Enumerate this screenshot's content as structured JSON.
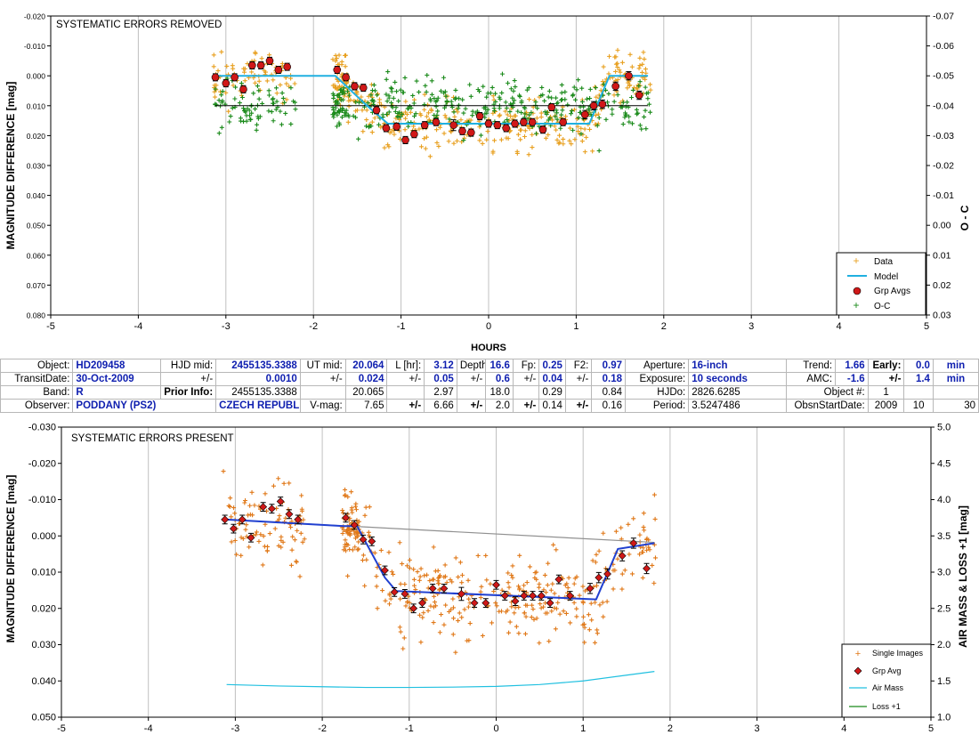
{
  "chart_data": [
    {
      "type": "scatter",
      "title": "SYSTEMATIC ERRORS REMOVED",
      "xlabel": "HOURS",
      "ylabel": "MAGNITUDE DIFFERENCE [mag]",
      "y2label": "O - C",
      "xlim": [
        -5,
        5
      ],
      "ylim": [
        -0.02,
        0.08
      ],
      "y_reversed": true,
      "y2lim": [
        -0.07,
        0.03
      ],
      "xticks": [
        "-5",
        "-4",
        "-3",
        "-2",
        "-1",
        "0",
        "1",
        "2",
        "3",
        "4",
        "5"
      ],
      "yticks": [
        "-0.020",
        "-0.010",
        "0.000",
        "0.010",
        "0.020",
        "0.030",
        "0.040",
        "0.050",
        "0.060",
        "0.070",
        "0.080"
      ],
      "y2ticks": [
        "-0.07",
        "-0.06",
        "-0.05",
        "-0.04",
        "-0.03",
        "-0.02",
        "-0.01",
        "0.00",
        "0.01",
        "0.02",
        "0.03"
      ],
      "grid": true,
      "legend_position": "bottom-right",
      "legend": [
        "Data",
        "Model",
        "Grp Avgs",
        "O-C"
      ],
      "colors": {
        "data": "#e8a020",
        "model": "#20b0e0",
        "grp": "#d01818",
        "oc": "#1a8a1a"
      },
      "model": {
        "x": [
          -3.1,
          -2.75,
          -1.75,
          -1.4,
          -1.15,
          1.15,
          1.38,
          1.82
        ],
        "y": [
          0.0,
          0.0,
          0.0,
          0.0097,
          0.016,
          0.016,
          0.0,
          0.0
        ]
      },
      "grp_avgs": {
        "x": [
          -3.12,
          -3.0,
          -2.9,
          -2.8,
          -2.7,
          -2.6,
          -2.5,
          -2.4,
          -2.3,
          -1.73,
          -1.63,
          -1.53,
          -1.43,
          -1.28,
          -1.17,
          -1.05,
          -0.95,
          -0.85,
          -0.73,
          -0.6,
          -0.4,
          -0.3,
          -0.2,
          -0.1,
          0.0,
          0.1,
          0.2,
          0.3,
          0.4,
          0.5,
          0.62,
          0.72,
          0.85,
          1.1,
          1.2,
          1.3,
          1.45,
          1.6,
          1.72
        ],
        "y": [
          0.0005,
          0.0025,
          0.0005,
          0.0045,
          -0.0035,
          -0.0035,
          -0.005,
          -0.002,
          -0.003,
          -0.002,
          0.0005,
          0.0035,
          0.004,
          0.0115,
          0.0175,
          0.017,
          0.0215,
          0.0195,
          0.0165,
          0.0155,
          0.0165,
          0.0185,
          0.019,
          0.0135,
          0.016,
          0.0165,
          0.0175,
          0.016,
          0.0155,
          0.0155,
          0.018,
          0.0105,
          0.0155,
          0.013,
          0.01,
          0.0095,
          0.0035,
          0.0,
          0.0065
        ],
        "err": [
          0.0012,
          0.0012,
          0.0012,
          0.0012,
          0.0012,
          0.0012,
          0.0012,
          0.0012,
          0.0012,
          0.0012,
          0.0012,
          0.0012,
          0.0012,
          0.0012,
          0.0012,
          0.0012,
          0.0012,
          0.0012,
          0.0012,
          0.0012,
          0.0018,
          0.0012,
          0.0012,
          0.0012,
          0.0012,
          0.0012,
          0.0012,
          0.0012,
          0.0012,
          0.0012,
          0.0012,
          0.0012,
          0.0012,
          0.0014,
          0.0014,
          0.0014,
          0.0014,
          0.0014,
          0.0014
        ]
      },
      "data_note": "approx. 500 individual scatter points spread around the model (±0.008 mag) from -3.15 to 1.85 h, gap between -2.2 and -1.75 h"
    },
    {
      "type": "scatter",
      "title": "SYSTEMATIC ERRORS PRESENT",
      "xlabel": "",
      "ylabel": "MAGNITUDE DIFFERENCE [mag]",
      "y2label": "AIR MASS & LOSS +1 [mag]",
      "xlim": [
        -5,
        5
      ],
      "ylim": [
        -0.03,
        0.05
      ],
      "y_reversed": true,
      "y2lim": [
        1.0,
        5.0
      ],
      "xticks": [
        "-5",
        "-4",
        "-3",
        "-2",
        "-1",
        "0",
        "1",
        "2",
        "3",
        "4",
        "5"
      ],
      "yticks": [
        "-0.030",
        "-0.020",
        "-0.010",
        "0.000",
        "0.010",
        "0.020",
        "0.030",
        "0.040",
        "0.050"
      ],
      "y2ticks": [
        "1.0",
        "1.5",
        "2.0",
        "2.5",
        "3.0",
        "3.5",
        "4.0",
        "4.5",
        "5.0"
      ],
      "grid": true,
      "legend_position": "bottom-right",
      "legend": [
        "Single Images",
        "Grp Avg",
        "Air Mass",
        "Loss +1"
      ],
      "colors": {
        "data": "#e07818",
        "model": "#2040d0",
        "grp": "#d01818",
        "airmass": "#20c0e0",
        "loss": "#1a8a1a",
        "trend": "#909090"
      },
      "model": {
        "x": [
          -3.1,
          -1.75,
          -1.6,
          -1.28,
          -1.15,
          1.15,
          1.4,
          1.82
        ],
        "y": [
          -0.0045,
          -0.0027,
          -0.0027,
          0.0115,
          0.0152,
          0.0175,
          0.0036,
          0.002
        ]
      },
      "trend": {
        "x": [
          -3.1,
          1.82
        ],
        "y": [
          -0.0045,
          0.0018
        ]
      },
      "airmass": {
        "x": [
          -3.1,
          -2.5,
          -2.0,
          -1.5,
          -1.0,
          -0.5,
          0.0,
          0.5,
          1.0,
          1.5,
          1.82
        ],
        "y": [
          1.45,
          1.43,
          1.42,
          1.41,
          1.41,
          1.415,
          1.425,
          1.45,
          1.5,
          1.58,
          1.63
        ]
      },
      "grp_avgs": {
        "x": [
          -3.12,
          -3.02,
          -2.92,
          -2.82,
          -2.68,
          -2.58,
          -2.48,
          -2.38,
          -2.28,
          -1.73,
          -1.63,
          -1.53,
          -1.43,
          -1.28,
          -1.17,
          -1.05,
          -0.95,
          -0.85,
          -0.73,
          -0.6,
          -0.4,
          -0.25,
          -0.12,
          0.0,
          0.1,
          0.22,
          0.32,
          0.42,
          0.52,
          0.62,
          0.72,
          0.85,
          1.08,
          1.18,
          1.28,
          1.45,
          1.58,
          1.73
        ],
        "y": [
          -0.0045,
          -0.002,
          -0.0045,
          0.0005,
          -0.008,
          -0.0075,
          -0.0095,
          -0.006,
          -0.0045,
          -0.005,
          -0.003,
          0.001,
          0.0015,
          0.0095,
          0.0155,
          0.016,
          0.02,
          0.0185,
          0.0145,
          0.0145,
          0.016,
          0.0185,
          0.0185,
          0.0135,
          0.0165,
          0.018,
          0.0165,
          0.0165,
          0.0165,
          0.0185,
          0.012,
          0.0165,
          0.0145,
          0.0115,
          0.0105,
          0.0055,
          0.002,
          0.009
        ],
        "err": [
          0.0012,
          0.0012,
          0.0012,
          0.0012,
          0.0012,
          0.0012,
          0.0012,
          0.0012,
          0.0012,
          0.0012,
          0.0012,
          0.0012,
          0.0012,
          0.0012,
          0.0012,
          0.0012,
          0.0012,
          0.0012,
          0.0012,
          0.0012,
          0.0018,
          0.0012,
          0.0012,
          0.0012,
          0.0012,
          0.0012,
          0.0012,
          0.0012,
          0.0012,
          0.0012,
          0.0012,
          0.0012,
          0.0014,
          0.0014,
          0.0014,
          0.0014,
          0.0014,
          0.0014
        ]
      }
    }
  ],
  "info": {
    "row1": {
      "object_label": "Object:",
      "object": "HD209458",
      "hjd_mid_label": "HJD mid:",
      "hjd_mid": "2455135.3388",
      "ut_mid_label": "UT mid:",
      "ut_mid": "20.064",
      "l_hr_label": "L [hr]:",
      "l_hr": "3.12",
      "depth_label": "Depth:",
      "depth": "16.6",
      "fp_label": "Fp:",
      "fp": "0.25",
      "f2_label": "F2:",
      "f2": "0.97",
      "aperture_label": "Aperture:",
      "aperture": "16-inch",
      "trend_label": "Trend:",
      "trend": "1.66",
      "early_label": "Early:",
      "early": "0.0",
      "early_unit": "min"
    },
    "row2": {
      "transit_date_label": "TransitDate:",
      "transit_date": "30-Oct-2009",
      "pm1": "+/-",
      "hjd_err": "0.0010",
      "pm2": "+/-",
      "ut_err": "0.024",
      "pm3": "+/-",
      "l_err": "0.05",
      "pm4": "+/-",
      "depth_err": "0.6",
      "pm5": "+/-",
      "fp_err": "0.04",
      "pm6": "+/-",
      "f2_err": "0.18",
      "exposure_label": "Exposure:",
      "exposure": "10 seconds",
      "amc_label": "AMC:",
      "amc": "-1.6",
      "pm7": "+/-",
      "early_err": "1.4",
      "early_err_unit": "min"
    },
    "row3": {
      "band_label": "Band:",
      "band": "R",
      "prior_label": "Prior Info:",
      "prior_hjd": "2455135.3388",
      "prior_ut": "20.065",
      "prior_l": "2.97",
      "prior_depth": "18.0",
      "prior_fp": "0.29",
      "prior_f2": "0.84",
      "hjdo_label": "HJDo:",
      "hjdo": "2826.6285",
      "object_num_label": "Object #:",
      "object_num": "1"
    },
    "row4": {
      "observer_label": "Observer:",
      "observer": "PODDANY (PS2)",
      "country": "CZECH REPUBLI",
      "vmag_label": "V-mag:",
      "vmag": "7.65",
      "pm1": "+/-",
      "v1": "6.66",
      "pm2": "+/-",
      "v2": "2.0",
      "pm3": "+/-",
      "v3": "0.14",
      "pm4": "+/-",
      "v4": "0.16",
      "period_label": "Period:",
      "period": "3.5247486",
      "obsn_label": "ObsnStartDate:",
      "obsn_year": "2009",
      "obsn_month": "10",
      "obsn_day": "30"
    }
  }
}
